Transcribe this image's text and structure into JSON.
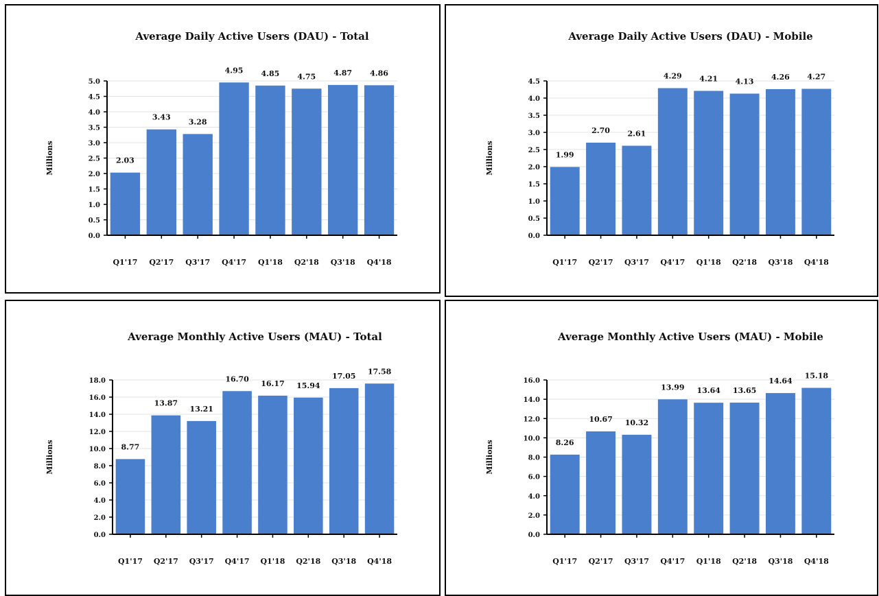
{
  "chart_data": [
    {
      "type": "bar",
      "title": "Average Daily Active Users (DAU) - Total",
      "ylabel": "Millions",
      "xlabel": "",
      "categories": [
        "Q1'17",
        "Q2'17",
        "Q3'17",
        "Q4'17",
        "Q1'18",
        "Q2'18",
        "Q3'18",
        "Q4'18"
      ],
      "values": [
        2.03,
        3.43,
        3.28,
        4.95,
        4.85,
        4.75,
        4.87,
        4.86
      ],
      "value_labels": [
        "2.03",
        "3.43",
        "3.28",
        "4.95",
        "4.85",
        "4.75",
        "4.87",
        "4.86"
      ],
      "ylim": [
        0,
        5
      ],
      "yticks": [
        "0.0",
        "0.5",
        "1.0",
        "1.5",
        "2.0",
        "2.5",
        "3.0",
        "3.5",
        "4.0",
        "4.5",
        "5.0"
      ],
      "grid": true,
      "bar_color": "#4a7fcd"
    },
    {
      "type": "bar",
      "title": "Average Daily Active Users (DAU) - Mobile",
      "ylabel": "Millions",
      "xlabel": "",
      "categories": [
        "Q1'17",
        "Q2'17",
        "Q3'17",
        "Q4'17",
        "Q1'18",
        "Q2'18",
        "Q3'18",
        "Q4'18"
      ],
      "values": [
        1.99,
        2.7,
        2.61,
        4.29,
        4.21,
        4.13,
        4.26,
        4.27
      ],
      "value_labels": [
        "1.99",
        "2.70",
        "2.61",
        "4.29",
        "4.21",
        "4.13",
        "4.26",
        "4.27"
      ],
      "ylim": [
        0,
        4.5
      ],
      "yticks": [
        "0.0",
        "0.5",
        "1.0",
        "1.5",
        "2.0",
        "2.5",
        "3.0",
        "3.5",
        "4.0",
        "4.5"
      ],
      "grid": true,
      "bar_color": "#4a7fcd"
    },
    {
      "type": "bar",
      "title": "Average Monthly Active Users (MAU) - Total",
      "ylabel": "Millions",
      "xlabel": "",
      "categories": [
        "Q1'17",
        "Q2'17",
        "Q3'17",
        "Q4'17",
        "Q1'18",
        "Q2'18",
        "Q3'18",
        "Q4'18"
      ],
      "values": [
        8.77,
        13.87,
        13.21,
        16.7,
        16.17,
        15.94,
        17.05,
        17.58
      ],
      "value_labels": [
        "8.77",
        "13.87",
        "13.21",
        "16.70",
        "16.17",
        "15.94",
        "17.05",
        "17.58"
      ],
      "ylim": [
        0,
        18
      ],
      "yticks": [
        "0.0",
        "2.0",
        "4.0",
        "6.0",
        "8.0",
        "10.0",
        "12.0",
        "14.0",
        "16.0",
        "18.0"
      ],
      "grid": true,
      "bar_color": "#4a7fcd"
    },
    {
      "type": "bar",
      "title": "Average Monthly Active Users (MAU) - Mobile",
      "ylabel": "Millions",
      "xlabel": "",
      "categories": [
        "Q1'17",
        "Q2'17",
        "Q3'17",
        "Q4'17",
        "Q1'18",
        "Q2'18",
        "Q3'18",
        "Q4'18"
      ],
      "values": [
        8.26,
        10.67,
        10.32,
        13.99,
        13.64,
        13.65,
        14.64,
        15.18
      ],
      "value_labels": [
        "8.26",
        "10.67",
        "10.32",
        "13.99",
        "13.64",
        "13.65",
        "14.64",
        "15.18"
      ],
      "ylim": [
        0,
        16
      ],
      "yticks": [
        "0.0",
        "2.0",
        "4.0",
        "6.0",
        "8.0",
        "10.0",
        "12.0",
        "14.0",
        "16.0"
      ],
      "grid": true,
      "bar_color": "#4a7fcd"
    }
  ]
}
